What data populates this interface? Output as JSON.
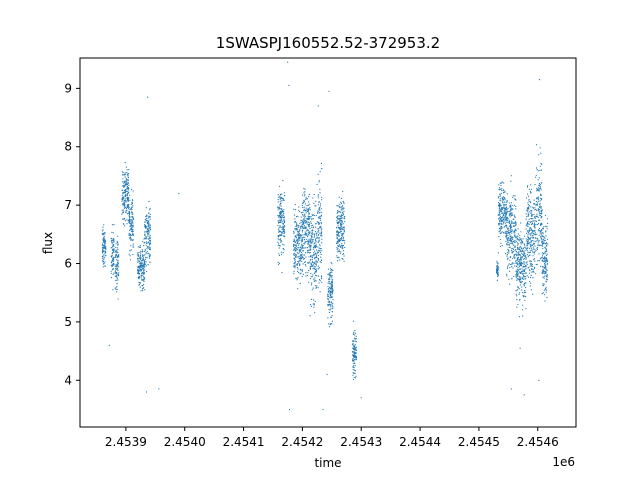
{
  "chart_data": {
    "type": "scatter",
    "title": "1SWASPJ160552.52-372953.2",
    "xlabel": "time",
    "ylabel": "flux",
    "x_offset_label": "1e6",
    "xlim": [
      2453822,
      2454665
    ],
    "ylim": [
      3.2,
      9.52
    ],
    "x_ticks": [
      2453900,
      2454000,
      2454100,
      2454200,
      2454300,
      2454400,
      2454500,
      2454600
    ],
    "x_tick_labels": [
      "2.4539",
      "2.4540",
      "2.4541",
      "2.4542",
      "2.4543",
      "2.4544",
      "2.4545",
      "2.4546"
    ],
    "y_ticks": [
      4,
      5,
      6,
      7,
      8,
      9
    ],
    "y_tick_labels": [
      "4",
      "5",
      "6",
      "7",
      "8",
      "9"
    ],
    "grid": false,
    "marker": "tiny points",
    "color": "#1f77b4",
    "series": [
      {
        "clusters": [
          {
            "x": [
              2453860,
              2453866
            ],
            "mean": 6.25,
            "sd": 0.25
          },
          {
            "x": [
              2453875,
              2453880
            ],
            "mean": 6.2,
            "sd": 0.3
          },
          {
            "x": [
              2453882,
              2453888
            ],
            "mean": 6.0,
            "sd": 0.35
          },
          {
            "x": [
              2453893,
              2453905
            ],
            "mean": 7.15,
            "sd": 0.35
          },
          {
            "x": [
              2453905,
              2453913
            ],
            "mean": 6.7,
            "sd": 0.35
          },
          {
            "x": [
              2453920,
              2453932
            ],
            "mean": 5.95,
            "sd": 0.25
          },
          {
            "x": [
              2453932,
              2453942
            ],
            "mean": 6.5,
            "sd": 0.35
          },
          {
            "x": [
              2454158,
              2454170
            ],
            "mean": 6.75,
            "sd": 0.4
          },
          {
            "x": [
              2454185,
              2454200
            ],
            "mean": 6.3,
            "sd": 0.4
          },
          {
            "x": [
              2454200,
              2454213
            ],
            "mean": 6.6,
            "sd": 0.5
          },
          {
            "x": [
              2454213,
              2454225
            ],
            "mean": 6.2,
            "sd": 0.6
          },
          {
            "x": [
              2454225,
              2454233
            ],
            "mean": 6.6,
            "sd": 0.6
          },
          {
            "x": [
              2454243,
              2454252
            ],
            "mean": 5.5,
            "sd": 0.35
          },
          {
            "x": [
              2454258,
              2454272
            ],
            "mean": 6.6,
            "sd": 0.35
          },
          {
            "x": [
              2454285,
              2454292
            ],
            "mean": 4.45,
            "sd": 0.28
          },
          {
            "x": [
              2454530,
              2454533
            ],
            "mean": 5.9,
            "sd": 0.1
          },
          {
            "x": [
              2454533,
              2454547
            ],
            "mean": 6.9,
            "sd": 0.35
          },
          {
            "x": [
              2454547,
              2454563
            ],
            "mean": 6.5,
            "sd": 0.45
          },
          {
            "x": [
              2454563,
              2454580
            ],
            "mean": 5.95,
            "sd": 0.45
          },
          {
            "x": [
              2454580,
              2454597
            ],
            "mean": 6.5,
            "sd": 0.55
          },
          {
            "x": [
              2454597,
              2454607
            ],
            "mean": 6.9,
            "sd": 0.6
          },
          {
            "x": [
              2454607,
              2454617
            ],
            "mean": 6.1,
            "sd": 0.4
          }
        ],
        "outliers": [
          {
            "x": 2453937,
            "y": 8.85
          },
          {
            "x": 2453935,
            "y": 3.8
          },
          {
            "x": 2453872,
            "y": 4.6
          },
          {
            "x": 2453956,
            "y": 3.85
          },
          {
            "x": 2454175,
            "y": 9.45
          },
          {
            "x": 2454177,
            "y": 9.05
          },
          {
            "x": 2454178,
            "y": 3.5
          },
          {
            "x": 2454227,
            "y": 8.7
          },
          {
            "x": 2454235,
            "y": 3.5
          },
          {
            "x": 2454245,
            "y": 8.95
          },
          {
            "x": 2454300,
            "y": 3.7
          },
          {
            "x": 2454603,
            "y": 9.15
          },
          {
            "x": 2454602,
            "y": 4.0
          },
          {
            "x": 2454577,
            "y": 3.75
          },
          {
            "x": 2454555,
            "y": 3.85
          },
          {
            "x": 2454570,
            "y": 4.55
          },
          {
            "x": 2454242,
            "y": 4.1
          },
          {
            "x": 2453990,
            "y": 7.2
          }
        ]
      }
    ]
  }
}
